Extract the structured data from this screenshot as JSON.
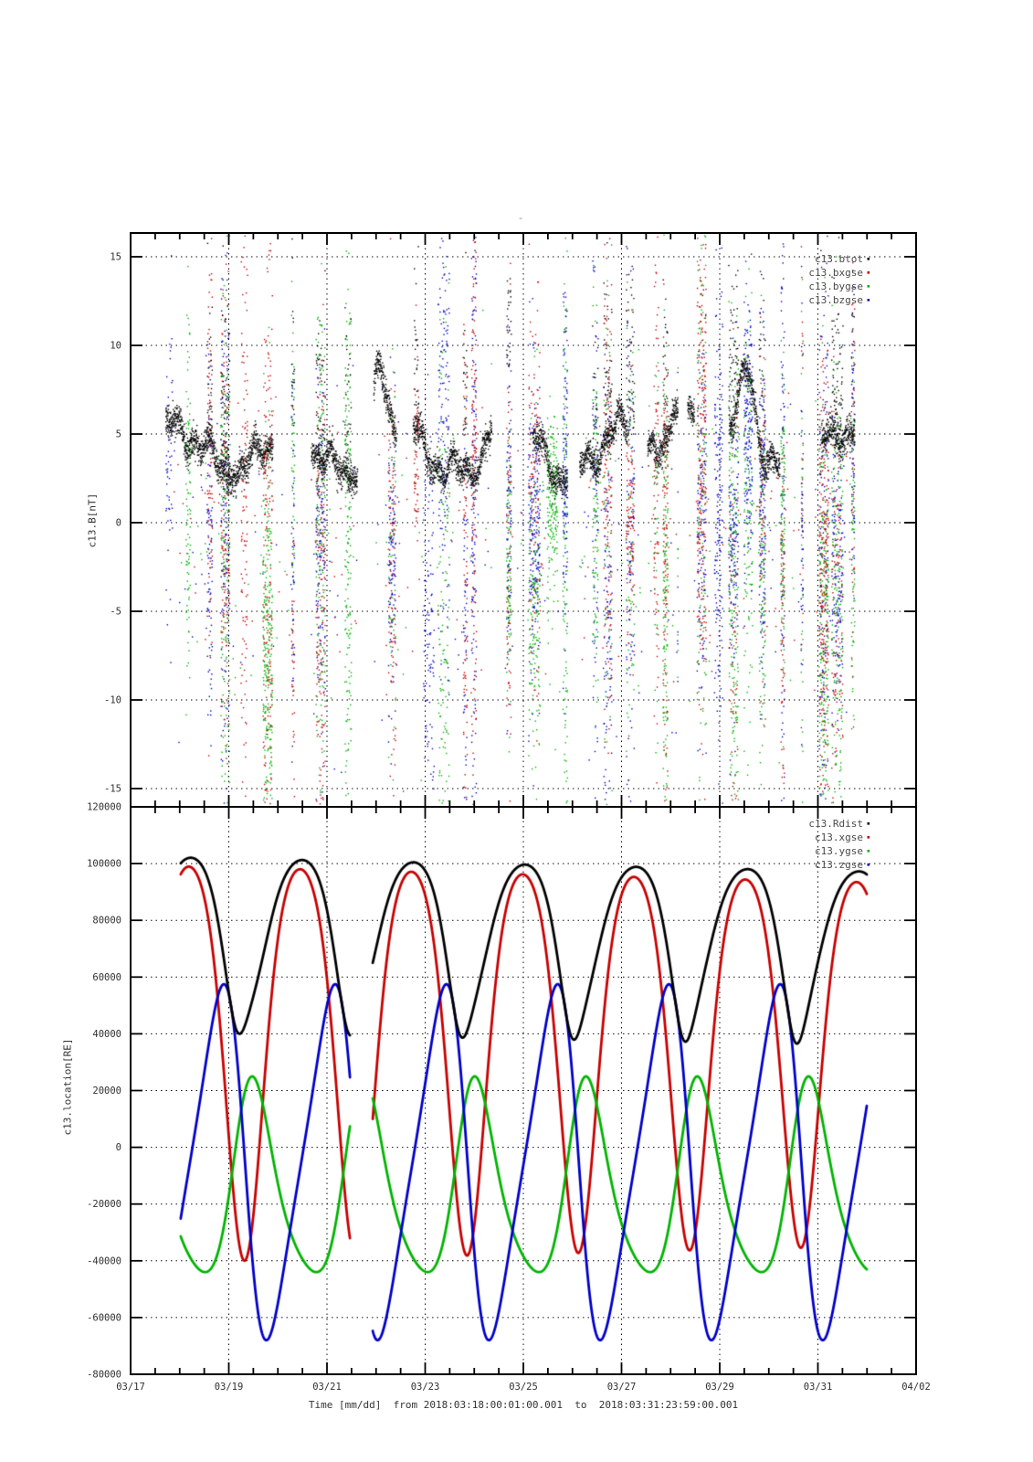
{
  "title": "-",
  "x_axis": {
    "label": "Time [mm/dd]  from 2018:03:18:00:01:00.001  to  2018:03:31:23:59:00.001",
    "tick_labels": [
      "03/17",
      "03/19",
      "03/21",
      "03/23",
      "03/25",
      "03/27",
      "03/29",
      "03/31",
      "04/02"
    ],
    "range_days": [
      0,
      16
    ],
    "major_step_days": 2,
    "minor_step_days": 0.5
  },
  "chart_data": [
    {
      "panel": "c13-magnetic-field",
      "type": "scatter",
      "title": "-",
      "ylabel": "c13.B[nT]",
      "ylim": [
        -16.03,
        16.34
      ],
      "ytick_values": [
        15,
        10,
        5,
        0,
        -5,
        -10,
        -15
      ],
      "ytick_labels": [
        "15",
        "10",
        "5",
        "0",
        "-5",
        "-10",
        "-15"
      ],
      "grid": true,
      "legend_position": "top-right-inside",
      "legend": [
        {
          "name": "c13.btot",
          "color": "#000000"
        },
        {
          "name": "c13.bxgse",
          "color": "#c80000"
        },
        {
          "name": "c13.bygse",
          "color": "#00b400"
        },
        {
          "name": "c13.bzgse",
          "color": "#0000c8"
        }
      ],
      "x_range_days": [
        0.72,
        14.75
      ],
      "gaps": [
        [
          3.35,
          3.68
        ],
        [
          4.62,
          4.95
        ],
        [
          7.4,
          7.62
        ],
        [
          8.9,
          9.15
        ],
        [
          11.15,
          11.35
        ],
        [
          13.7,
          13.92
        ]
      ],
      "value_clip": [
        -15.9,
        16.25
      ],
      "scatter_model": {
        "seed": 20180318,
        "band": {
          "base": 4.0,
          "orbital_amp": 1.25,
          "period_days": 2.2667,
          "sigma": 0.42,
          "description": "btot forms a dense black band near 3-6 nT with humps to ~9-10"
        },
        "stripes": {
          "width_days": [
            0.05,
            0.25
          ],
          "gap_days": [
            0.06,
            0.4
          ],
          "description": "components bxgse/bygse/bzgse occur in dense vertical bursts spanning -15..15 nT"
        },
        "perigee_times": [
          2.32,
          4.59,
          6.85,
          9.12,
          11.39,
          13.65
        ]
      }
    },
    {
      "panel": "c13-location",
      "type": "line",
      "ylabel": "c13.location[RE]",
      "ylim": [
        -80000,
        120000
      ],
      "ytick_values": [
        120000,
        100000,
        80000,
        60000,
        40000,
        20000,
        0,
        -20000,
        -40000,
        -60000,
        -80000
      ],
      "ytick_labels": [
        "120000",
        "100000",
        "80000",
        "60000",
        "40000",
        "20000",
        "0",
        "-20000",
        "-40000",
        "-60000",
        "-80000"
      ],
      "grid": true,
      "legend_position": "top-right-inside",
      "legend": [
        {
          "name": "c13.Rdist",
          "color": "#000000"
        },
        {
          "name": "c13.xgse",
          "color": "#c80000"
        },
        {
          "name": "c13.ygse",
          "color": "#00b400"
        },
        {
          "name": "c13.zgse",
          "color": "#0000c8"
        }
      ],
      "x_range_days": [
        1.02,
        15.0
      ],
      "gaps": [
        [
          4.47,
          4.93
        ]
      ],
      "orbit_model": {
        "period_days": 2.2667,
        "perigee_t": 2.32,
        "skew": 0.4,
        "rdist_scale": 0.96
      },
      "series": [
        {
          "name": "c13.Rdist",
          "color": "#000000",
          "derived": "norm_of_components",
          "max": 103000,
          "min": 42500,
          "peaks_at_days": [
            1.19,
            3.45,
            5.72,
            7.99,
            10.25,
            12.52,
            14.79
          ]
        },
        {
          "name": "c13.xgse",
          "color": "#c80000",
          "offset": 29250,
          "amp": 69750,
          "amp_slope_per_day": -400,
          "phase": 3.14159265,
          "max": 99000,
          "min": -40500
        },
        {
          "name": "c13.ygse",
          "color": "#00b400",
          "offset": -9500,
          "amp": 34500,
          "amp_slope_per_day": 0,
          "phase": -0.6,
          "max": 25000,
          "min": -44000
        },
        {
          "name": "c13.zgse",
          "color": "#0000c8",
          "offset": -5250,
          "amp": 62750,
          "amp_slope_per_day": 0,
          "phase": 1.532,
          "max": 57500,
          "min": -68000
        }
      ]
    }
  ]
}
